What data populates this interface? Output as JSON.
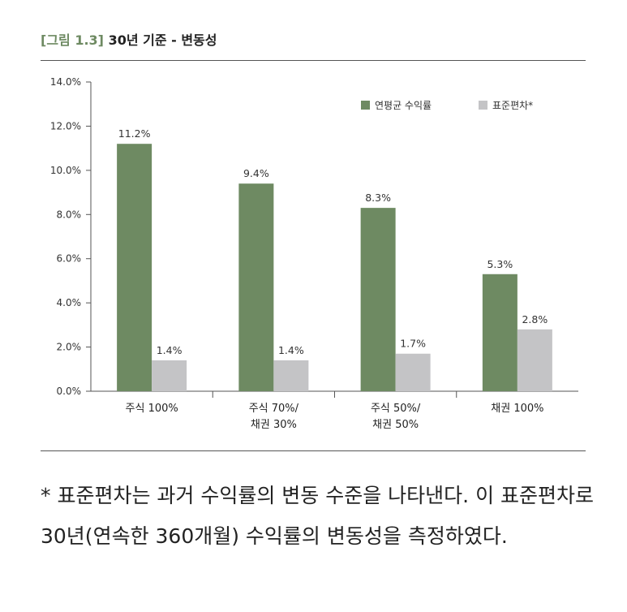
{
  "caption": {
    "fig_label": "[그림 1.3]",
    "title": "30년 기준 - 변동성"
  },
  "colors": {
    "accent": "#6e8a62",
    "series_return": "#6e8a62",
    "series_std": "#c4c4c6"
  },
  "chart_data": {
    "type": "bar",
    "categories": [
      [
        "주식 100%"
      ],
      [
        "주식 70%/",
        "채권 30%"
      ],
      [
        "주식 50%/",
        "채권 50%"
      ],
      [
        "채권 100%"
      ]
    ],
    "series": [
      {
        "name": "연평균 수익률",
        "values": [
          11.2,
          9.4,
          8.3,
          5.3
        ],
        "labels": [
          "11.2%",
          "9.4%",
          "8.3%",
          "5.3%"
        ]
      },
      {
        "name": "표준편차*",
        "values": [
          1.4,
          1.4,
          1.7,
          2.8
        ],
        "labels": [
          "1.4%",
          "1.4%",
          "1.7%",
          "2.8%"
        ]
      }
    ],
    "ylim": [
      0,
      14
    ],
    "yticks": [
      "0.0%",
      "2.0%",
      "4.0%",
      "6.0%",
      "8.0%",
      "10.0%",
      "12.0%",
      "14.0%"
    ],
    "legend": "top-right",
    "grid": false
  },
  "note": "* 표준편차는 과거 수익률의 변동 수준을 나타낸다. 이 표준편차로 30년(연속한 360개월) 수익률의 변동성을 측정하였다."
}
